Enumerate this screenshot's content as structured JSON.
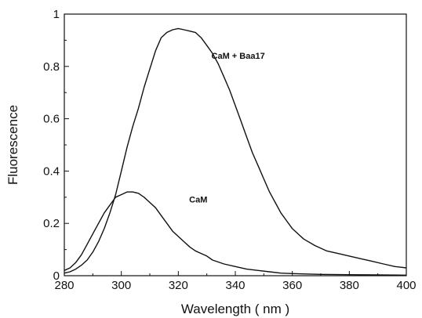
{
  "chart_data": {
    "type": "line",
    "title": "",
    "xlabel": "Wavelength ( nm )",
    "ylabel": "Fluorescence",
    "xlim": [
      280,
      400
    ],
    "ylim": [
      0,
      1
    ],
    "x_ticks": [
      280,
      300,
      320,
      340,
      360,
      380,
      400
    ],
    "y_ticks": [
      0,
      0.2,
      0.4,
      0.6,
      0.8,
      1
    ],
    "x_tick_labels": [
      "280",
      "300",
      "320",
      "340",
      "360",
      "380",
      "400"
    ],
    "y_tick_labels": [
      "0",
      "0.2",
      "0.4",
      "0.6",
      "0.8",
      "1"
    ],
    "grid": false,
    "legend": "none",
    "series": [
      {
        "name": "CaM + Baa17",
        "x": [
          280,
          282,
          284,
          286,
          288,
          290,
          292,
          294,
          296,
          298,
          300,
          302,
          304,
          306,
          308,
          310,
          312,
          314,
          316,
          318,
          320,
          322,
          324,
          326,
          328,
          330,
          332,
          334,
          336,
          338,
          340,
          342,
          344,
          346,
          348,
          350,
          352,
          354,
          356,
          358,
          360,
          364,
          368,
          372,
          376,
          380,
          384,
          388,
          392,
          396,
          400
        ],
        "y": [
          0.01,
          0.015,
          0.025,
          0.04,
          0.06,
          0.09,
          0.13,
          0.18,
          0.24,
          0.31,
          0.4,
          0.49,
          0.57,
          0.64,
          0.72,
          0.79,
          0.86,
          0.91,
          0.93,
          0.94,
          0.945,
          0.94,
          0.935,
          0.93,
          0.91,
          0.88,
          0.85,
          0.81,
          0.76,
          0.71,
          0.65,
          0.59,
          0.53,
          0.47,
          0.42,
          0.37,
          0.32,
          0.28,
          0.24,
          0.21,
          0.18,
          0.14,
          0.115,
          0.095,
          0.085,
          0.075,
          0.065,
          0.055,
          0.045,
          0.035,
          0.03
        ],
        "color": "#111111"
      },
      {
        "name": "CaM",
        "x": [
          280,
          282,
          284,
          286,
          288,
          290,
          292,
          294,
          296,
          298,
          300,
          302,
          304,
          306,
          308,
          310,
          312,
          314,
          316,
          318,
          320,
          322,
          324,
          326,
          328,
          330,
          332,
          336,
          340,
          344,
          348,
          352,
          356,
          360,
          370,
          380,
          390,
          400
        ],
        "y": [
          0.02,
          0.03,
          0.05,
          0.08,
          0.12,
          0.16,
          0.2,
          0.24,
          0.27,
          0.3,
          0.31,
          0.32,
          0.32,
          0.315,
          0.3,
          0.28,
          0.26,
          0.23,
          0.2,
          0.17,
          0.15,
          0.13,
          0.11,
          0.095,
          0.085,
          0.075,
          0.06,
          0.045,
          0.035,
          0.025,
          0.02,
          0.015,
          0.01,
          0.008,
          0.005,
          0.004,
          0.003,
          0.002
        ],
        "color": "#111111"
      }
    ],
    "annotations": [
      {
        "text": "CaM + Baa17",
        "x": 341,
        "y": 0.83
      },
      {
        "text": "CaM",
        "x": 327,
        "y": 0.28
      }
    ]
  }
}
